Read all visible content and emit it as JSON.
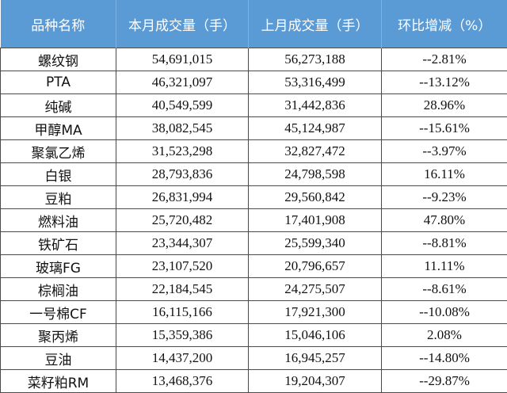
{
  "headers": [
    "品种名称",
    "本月成交量（手）",
    "上月成交量（手）",
    "环比增减（%）"
  ],
  "rows": [
    {
      "name": "螺纹钢",
      "this_month": "54,691,015",
      "last_month": "56,273,188",
      "change": "--2.81%"
    },
    {
      "name": "PTA",
      "this_month": "46,321,097",
      "last_month": "53,316,499",
      "change": "--13.12%"
    },
    {
      "name": "纯碱",
      "this_month": "40,549,599",
      "last_month": "31,442,836",
      "change": "28.96%"
    },
    {
      "name": "甲醇MA",
      "this_month": "38,082,545",
      "last_month": "45,124,987",
      "change": "--15.61%"
    },
    {
      "name": "聚氯乙烯",
      "this_month": "31,523,298",
      "last_month": "32,827,472",
      "change": "--3.97%"
    },
    {
      "name": "白银",
      "this_month": "28,793,836",
      "last_month": "24,798,598",
      "change": "16.11%"
    },
    {
      "name": "豆粕",
      "this_month": "26,831,994",
      "last_month": "29,560,842",
      "change": "--9.23%"
    },
    {
      "name": "燃料油",
      "this_month": "25,720,482",
      "last_month": "17,401,908",
      "change": "47.80%"
    },
    {
      "name": "铁矿石",
      "this_month": "23,344,307",
      "last_month": "25,599,340",
      "change": "--8.81%"
    },
    {
      "name": "玻璃FG",
      "this_month": "23,107,520",
      "last_month": "20,796,657",
      "change": "11.11%"
    },
    {
      "name": "棕榈油",
      "this_month": "22,184,545",
      "last_month": "24,275,507",
      "change": "--8.61%"
    },
    {
      "name": "一号棉CF",
      "this_month": "16,115,166",
      "last_month": "17,921,300",
      "change": "--10.08%"
    },
    {
      "name": "聚丙烯",
      "this_month": "15,359,386",
      "last_month": "15,046,106",
      "change": "2.08%"
    },
    {
      "name": "豆油",
      "this_month": "14,437,200",
      "last_month": "16,945,257",
      "change": "--14.80%"
    },
    {
      "name": "菜籽粕RM",
      "this_month": "13,468,376",
      "last_month": "19,204,307",
      "change": "--29.87%"
    }
  ],
  "colors": {
    "header_bg": "#5b9bd5",
    "header_text": "#ffffff",
    "border": "#4a4a4a"
  }
}
